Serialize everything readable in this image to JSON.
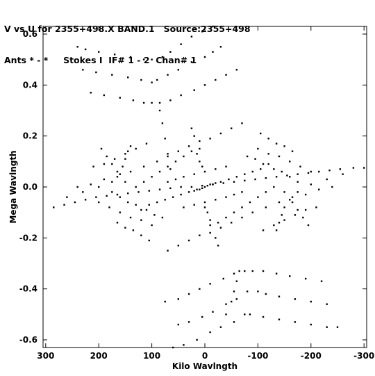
{
  "header": {
    "line1": "V vs U for 2355+498.X BAND.1   Source:2355+498",
    "line2": "Ants * - *     Stokes I  IF# 1 - 2  Chan# 1"
  },
  "chart_data": {
    "type": "scatter",
    "xlabel": "Kilo Wavlngth",
    "ylabel": "Mega Wavlngth",
    "xlim": [
      305,
      -305
    ],
    "ylim": [
      -0.63,
      0.63
    ],
    "xticks": [
      300,
      200,
      100,
      0,
      -100,
      -200,
      -300
    ],
    "xtick_labels": [
      "300",
      "200",
      "100",
      "0",
      "-100",
      "-200",
      "-300"
    ],
    "yticks": [
      0.6,
      0.4,
      0.2,
      0.0,
      -0.2,
      -0.4,
      -0.6
    ],
    "ytick_labels": [
      "0.6",
      "0.4",
      "0.2",
      "0.0",
      "-0.2",
      "-0.4",
      "-0.6"
    ],
    "marker_color": "#000000",
    "points": [
      [
        240,
        0.55
      ],
      [
        225,
        0.54
      ],
      [
        200,
        0.53
      ],
      [
        170,
        0.52
      ],
      [
        140,
        0.51
      ],
      [
        115,
        0.5
      ],
      [
        100,
        0.5
      ],
      [
        80,
        0.51
      ],
      [
        65,
        0.53
      ],
      [
        45,
        0.56
      ],
      [
        25,
        0.59
      ],
      [
        5,
        0.61
      ],
      [
        -15,
        0.63
      ],
      [
        230,
        0.46
      ],
      [
        205,
        0.45
      ],
      [
        175,
        0.44
      ],
      [
        145,
        0.43
      ],
      [
        120,
        0.42
      ],
      [
        100,
        0.41
      ],
      [
        90,
        0.42
      ],
      [
        70,
        0.44
      ],
      [
        50,
        0.46
      ],
      [
        25,
        0.49
      ],
      [
        0,
        0.51
      ],
      [
        -15,
        0.53
      ],
      [
        -30,
        0.55
      ],
      [
        215,
        0.37
      ],
      [
        190,
        0.36
      ],
      [
        160,
        0.35
      ],
      [
        135,
        0.34
      ],
      [
        115,
        0.33
      ],
      [
        100,
        0.33
      ],
      [
        85,
        0.33
      ],
      [
        65,
        0.34
      ],
      [
        45,
        0.36
      ],
      [
        20,
        0.38
      ],
      [
        0,
        0.4
      ],
      [
        -20,
        0.42
      ],
      [
        -40,
        0.44
      ],
      [
        -60,
        0.46
      ],
      [
        85,
        0.3
      ],
      [
        80,
        0.25
      ],
      [
        75,
        0.19
      ],
      [
        70,
        0.13
      ],
      [
        65,
        0.07
      ],
      [
        -65,
        -0.33
      ],
      [
        -60,
        -0.37
      ],
      [
        -55,
        -0.41
      ],
      [
        -50,
        -0.45
      ],
      [
        -40,
        -0.5
      ],
      [
        -250,
        -0.55
      ],
      [
        -230,
        -0.55
      ],
      [
        -200,
        -0.54
      ],
      [
        -170,
        -0.53
      ],
      [
        -140,
        -0.52
      ],
      [
        -110,
        -0.51
      ],
      [
        -85,
        -0.5
      ],
      [
        -75,
        -0.5
      ],
      [
        -55,
        -0.53
      ],
      [
        -30,
        -0.55
      ],
      [
        -10,
        -0.57
      ],
      [
        15,
        -0.6
      ],
      [
        40,
        -0.62
      ],
      [
        60,
        -0.63
      ],
      [
        -230,
        -0.46
      ],
      [
        -200,
        -0.45
      ],
      [
        -170,
        -0.44
      ],
      [
        -140,
        -0.43
      ],
      [
        -115,
        -0.42
      ],
      [
        -100,
        -0.41
      ],
      [
        -80,
        -0.41
      ],
      [
        -60,
        -0.44
      ],
      [
        -40,
        -0.46
      ],
      [
        -15,
        -0.49
      ],
      [
        5,
        -0.51
      ],
      [
        30,
        -0.53
      ],
      [
        50,
        -0.54
      ],
      [
        -220,
        -0.37
      ],
      [
        -190,
        -0.36
      ],
      [
        -160,
        -0.35
      ],
      [
        -135,
        -0.34
      ],
      [
        -110,
        -0.33
      ],
      [
        -90,
        -0.33
      ],
      [
        -75,
        -0.33
      ],
      [
        -55,
        -0.34
      ],
      [
        -35,
        -0.36
      ],
      [
        -10,
        -0.38
      ],
      [
        10,
        -0.4
      ],
      [
        30,
        -0.42
      ],
      [
        50,
        -0.44
      ],
      [
        75,
        -0.45
      ],
      [
        285,
        -0.08
      ],
      [
        265,
        -0.07
      ],
      [
        245,
        -0.06
      ],
      [
        225,
        -0.05
      ],
      [
        205,
        -0.04
      ],
      [
        185,
        -0.035
      ],
      [
        165,
        -0.03
      ],
      [
        145,
        -0.025
      ],
      [
        125,
        -0.02
      ],
      [
        105,
        -0.015
      ],
      [
        85,
        -0.01
      ],
      [
        65,
        -0.005
      ],
      [
        45,
        0.0
      ],
      [
        25,
        0.0
      ],
      [
        5,
        0.005
      ],
      [
        -15,
        0.01
      ],
      [
        -35,
        0.015
      ],
      [
        -55,
        0.02
      ],
      [
        -75,
        0.025
      ],
      [
        -95,
        0.03
      ],
      [
        -115,
        0.035
      ],
      [
        -135,
        0.04
      ],
      [
        -155,
        0.045
      ],
      [
        -175,
        0.05
      ],
      [
        -195,
        0.055
      ],
      [
        -215,
        0.06
      ],
      [
        -235,
        0.065
      ],
      [
        -255,
        0.07
      ],
      [
        -280,
        0.075
      ],
      [
        -300,
        0.075
      ],
      [
        260,
        -0.04
      ],
      [
        230,
        -0.02
      ],
      [
        200,
        0.0
      ],
      [
        175,
        0.02
      ],
      [
        160,
        0.05
      ],
      [
        155,
        0.08
      ],
      [
        150,
        0.11
      ],
      [
        145,
        0.14
      ],
      [
        140,
        0.16
      ],
      [
        -260,
        0.05
      ],
      [
        -230,
        0.03
      ],
      [
        -200,
        0.01
      ],
      [
        -175,
        -0.02
      ],
      [
        -160,
        -0.05
      ],
      [
        -150,
        -0.08
      ],
      [
        -145,
        -0.11
      ],
      [
        -140,
        -0.14
      ],
      [
        -135,
        -0.17
      ],
      [
        195,
        0.15
      ],
      [
        185,
        0.12
      ],
      [
        175,
        0.09
      ],
      [
        165,
        0.06
      ],
      [
        150,
        0.02
      ],
      [
        -195,
        -0.15
      ],
      [
        -185,
        -0.12
      ],
      [
        -175,
        -0.09
      ],
      [
        -165,
        -0.06
      ],
      [
        -150,
        -0.02
      ],
      [
        240,
        0.0
      ],
      [
        215,
        0.01
      ],
      [
        190,
        0.03
      ],
      [
        165,
        0.04
      ],
      [
        140,
        0.06
      ],
      [
        115,
        0.08
      ],
      [
        90,
        0.1
      ],
      [
        70,
        0.12
      ],
      [
        50,
        0.14
      ],
      [
        30,
        0.16
      ],
      [
        10,
        0.18
      ],
      [
        -10,
        0.19
      ],
      [
        -30,
        0.21
      ],
      [
        -50,
        0.23
      ],
      [
        -70,
        0.25
      ],
      [
        -240,
        0.0
      ],
      [
        -215,
        -0.01
      ],
      [
        -190,
        -0.03
      ],
      [
        -165,
        -0.04
      ],
      [
        -140,
        -0.06
      ],
      [
        -115,
        -0.08
      ],
      [
        -90,
        -0.1
      ],
      [
        -70,
        -0.12
      ],
      [
        -50,
        -0.14
      ],
      [
        -30,
        -0.16
      ],
      [
        -10,
        -0.18
      ],
      [
        10,
        -0.19
      ],
      [
        30,
        -0.21
      ],
      [
        50,
        -0.23
      ],
      [
        70,
        -0.25
      ],
      [
        210,
        0.08
      ],
      [
        190,
        0.09
      ],
      [
        170,
        0.11
      ],
      [
        150,
        0.13
      ],
      [
        130,
        0.15
      ],
      [
        110,
        0.17
      ],
      [
        -210,
        -0.08
      ],
      [
        -190,
        -0.09
      ],
      [
        -170,
        -0.11
      ],
      [
        -150,
        -0.13
      ],
      [
        -130,
        -0.15
      ],
      [
        -110,
        -0.17
      ],
      [
        130,
        0.0
      ],
      [
        115,
        0.02
      ],
      [
        100,
        0.04
      ],
      [
        85,
        0.06
      ],
      [
        70,
        0.08
      ],
      [
        55,
        0.1
      ],
      [
        40,
        0.12
      ],
      [
        25,
        0.14
      ],
      [
        10,
        0.15
      ],
      [
        -130,
        0.0
      ],
      [
        -115,
        -0.02
      ],
      [
        -100,
        -0.04
      ],
      [
        -85,
        -0.06
      ],
      [
        -70,
        -0.08
      ],
      [
        -55,
        -0.1
      ],
      [
        -40,
        -0.12
      ],
      [
        -25,
        -0.14
      ],
      [
        -10,
        -0.15
      ],
      [
        200,
        -0.06
      ],
      [
        180,
        -0.08
      ],
      [
        160,
        -0.1
      ],
      [
        140,
        -0.12
      ],
      [
        120,
        -0.13
      ],
      [
        100,
        -0.15
      ],
      [
        -200,
        0.06
      ],
      [
        -180,
        0.08
      ],
      [
        -160,
        0.1
      ],
      [
        -140,
        0.12
      ],
      [
        -120,
        0.13
      ],
      [
        -100,
        0.15
      ],
      [
        120,
        -0.09
      ],
      [
        105,
        -0.07
      ],
      [
        90,
        -0.06
      ],
      [
        75,
        -0.05
      ],
      [
        60,
        -0.04
      ],
      [
        45,
        -0.03
      ],
      [
        30,
        -0.02
      ],
      [
        15,
        -0.01
      ],
      [
        -120,
        0.09
      ],
      [
        -105,
        0.07
      ],
      [
        -90,
        0.06
      ],
      [
        -75,
        0.05
      ],
      [
        -60,
        0.04
      ],
      [
        -45,
        0.03
      ],
      [
        -30,
        0.02
      ],
      [
        -15,
        0.01
      ],
      [
        0,
        0.0
      ],
      [
        -5,
        0.005
      ],
      [
        5,
        -0.005
      ],
      [
        -10,
        0.01
      ],
      [
        10,
        -0.01
      ],
      [
        -20,
        0.015
      ],
      [
        20,
        -0.015
      ],
      [
        175,
        -0.02
      ],
      [
        160,
        -0.04
      ],
      [
        145,
        -0.06
      ],
      [
        130,
        -0.07
      ],
      [
        110,
        -0.09
      ],
      [
        95,
        -0.11
      ],
      [
        80,
        -0.12
      ],
      [
        -175,
        0.02
      ],
      [
        -160,
        0.04
      ],
      [
        -145,
        0.06
      ],
      [
        -130,
        0.07
      ],
      [
        -110,
        0.09
      ],
      [
        -95,
        0.11
      ],
      [
        -80,
        0.12
      ],
      [
        70,
        0.02
      ],
      [
        55,
        0.03
      ],
      [
        40,
        0.04
      ],
      [
        20,
        0.05
      ],
      [
        0,
        0.06
      ],
      [
        -20,
        0.07
      ],
      [
        -40,
        0.08
      ],
      [
        -70,
        -0.02
      ],
      [
        -55,
        -0.03
      ],
      [
        -40,
        -0.04
      ],
      [
        -20,
        -0.05
      ],
      [
        0,
        -0.06
      ],
      [
        20,
        -0.07
      ],
      [
        40,
        -0.08
      ],
      [
        165,
        -0.14
      ],
      [
        150,
        -0.16
      ],
      [
        135,
        -0.17
      ],
      [
        120,
        -0.19
      ],
      [
        105,
        -0.21
      ],
      [
        -165,
        0.14
      ],
      [
        -150,
        0.16
      ],
      [
        -135,
        0.17
      ],
      [
        -120,
        0.19
      ],
      [
        -105,
        0.21
      ],
      [
        -10,
        -0.13
      ],
      [
        -5,
        -0.1
      ],
      [
        0,
        -0.08
      ],
      [
        5,
        0.08
      ],
      [
        10,
        0.1
      ],
      [
        15,
        0.13
      ],
      [
        -20,
        -0.2
      ],
      [
        -25,
        -0.23
      ],
      [
        20,
        0.2
      ],
      [
        25,
        0.23
      ]
    ]
  }
}
